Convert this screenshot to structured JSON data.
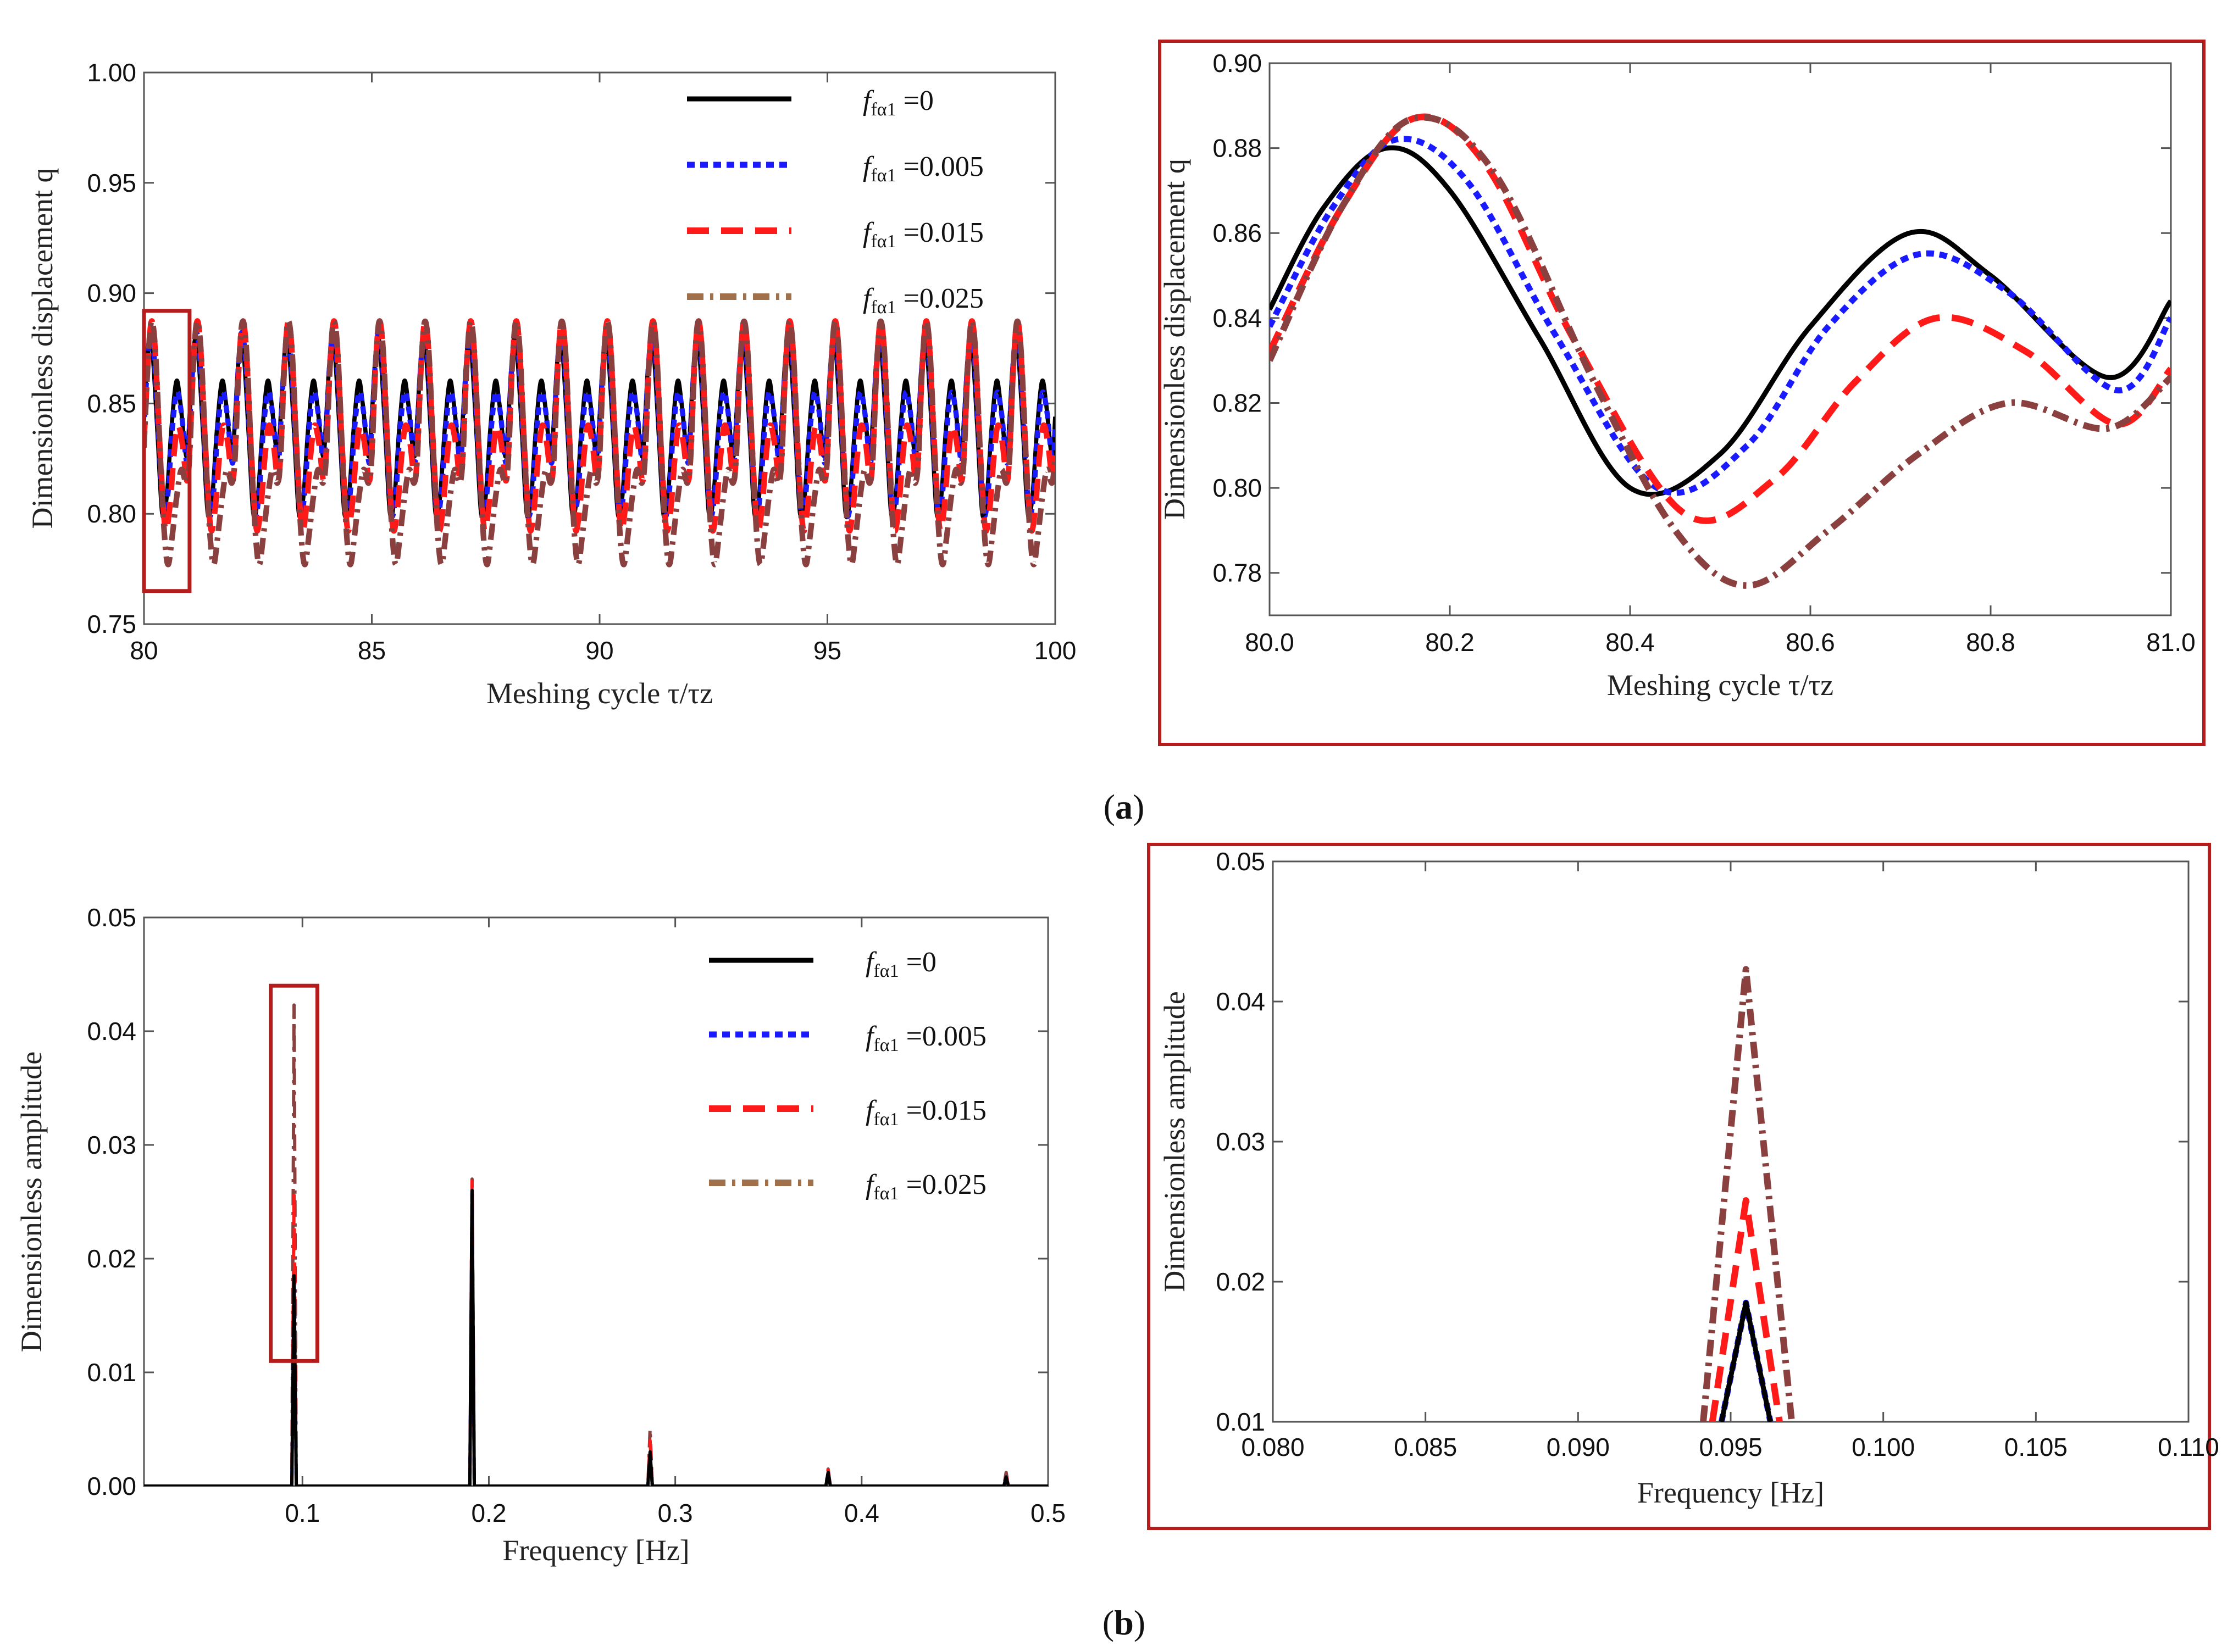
{
  "colors": {
    "series": [
      "#000000",
      "#1a1aff",
      "#ff1a1a",
      "#8b4040"
    ],
    "legend_swatch_025": "#a0704a",
    "highlight_box": "#b51c1c"
  },
  "panel_labels": {
    "a": {
      "open": "(",
      "letter": "a",
      "close": ")"
    },
    "b": {
      "open": "(",
      "letter": "b",
      "close": ")"
    }
  },
  "legend": {
    "items": [
      {
        "symbol": "f",
        "subscript": "fα1",
        "value": "=0"
      },
      {
        "symbol": "f",
        "subscript": "fα1",
        "value": "=0.005"
      },
      {
        "symbol": "f",
        "subscript": "fα1",
        "value": "=0.015"
      },
      {
        "symbol": "f",
        "subscript": "fα1",
        "value": "=0.025"
      }
    ]
  },
  "chart_data": [
    {
      "id": "a-main",
      "type": "line",
      "xlabel": "Meshing cycle τ/τz",
      "ylabel": "Dimensionless displacement q",
      "xlim": [
        80,
        100
      ],
      "ylim": [
        0.75,
        1.0
      ],
      "xticks": [
        "80",
        "85",
        "90",
        "95",
        "100"
      ],
      "yticks": [
        "0.75",
        "0.80",
        "0.85",
        "0.90",
        "0.95",
        "1.00"
      ],
      "legend_position": "top-right",
      "highlight_region": {
        "x": [
          80.0,
          81.0
        ],
        "y": [
          0.765,
          0.892
        ]
      },
      "series": [
        {
          "legend_index": 0,
          "dash": "solid",
          "period": 1.0,
          "y_min": 0.8,
          "y_max": 0.86,
          "y_peak2": 0.88
        },
        {
          "legend_index": 1,
          "dash": "dot",
          "period": 1.0,
          "y_min": 0.8,
          "y_max": 0.855,
          "y_peak2": 0.882
        },
        {
          "legend_index": 2,
          "dash": "dash",
          "period": 1.0,
          "y_min": 0.795,
          "y_max": 0.84,
          "y_peak2": 0.887
        },
        {
          "legend_index": 3,
          "dash": "dashdot",
          "period": 1.0,
          "y_min": 0.777,
          "y_max": 0.82,
          "y_peak2": 0.887
        }
      ]
    },
    {
      "id": "a-zoom",
      "type": "line",
      "xlabel": "Meshing cycle τ/τz",
      "ylabel": "Dimensionless displacement q",
      "xlim": [
        80.0,
        81.0
      ],
      "ylim": [
        0.77,
        0.9
      ],
      "xticks": [
        "80.0",
        "80.2",
        "80.4",
        "80.6",
        "80.8",
        "81.0"
      ],
      "yticks": [
        "0.78",
        "0.80",
        "0.82",
        "0.84",
        "0.86",
        "0.88",
        "0.90"
      ],
      "series": [
        {
          "legend_index": 0,
          "points": [
            [
              80.0,
              0.842
            ],
            [
              80.06,
              0.866
            ],
            [
              80.13,
              0.88
            ],
            [
              80.2,
              0.87
            ],
            [
              80.3,
              0.835
            ],
            [
              80.4,
              0.8
            ],
            [
              80.5,
              0.808
            ],
            [
              80.6,
              0.838
            ],
            [
              80.71,
              0.86
            ],
            [
              80.8,
              0.85
            ],
            [
              80.93,
              0.826
            ],
            [
              81.0,
              0.844
            ]
          ]
        },
        {
          "legend_index": 1,
          "points": [
            [
              80.0,
              0.838
            ],
            [
              80.07,
              0.866
            ],
            [
              80.14,
              0.882
            ],
            [
              80.22,
              0.872
            ],
            [
              80.32,
              0.835
            ],
            [
              80.43,
              0.8
            ],
            [
              80.53,
              0.81
            ],
            [
              80.62,
              0.838
            ],
            [
              80.72,
              0.855
            ],
            [
              80.82,
              0.846
            ],
            [
              80.94,
              0.823
            ],
            [
              81.0,
              0.84
            ]
          ]
        },
        {
          "legend_index": 2,
          "points": [
            [
              80.0,
              0.832
            ],
            [
              80.08,
              0.866
            ],
            [
              80.16,
              0.887
            ],
            [
              80.24,
              0.876
            ],
            [
              80.34,
              0.834
            ],
            [
              80.46,
              0.794
            ],
            [
              80.56,
              0.802
            ],
            [
              80.65,
              0.825
            ],
            [
              80.74,
              0.84
            ],
            [
              80.84,
              0.832
            ],
            [
              80.94,
              0.815
            ],
            [
              81.0,
              0.828
            ]
          ]
        },
        {
          "legend_index": 3,
          "points": [
            [
              80.0,
              0.83
            ],
            [
              80.08,
              0.866
            ],
            [
              80.16,
              0.887
            ],
            [
              80.25,
              0.874
            ],
            [
              80.36,
              0.825
            ],
            [
              80.45,
              0.79
            ],
            [
              80.53,
              0.777
            ],
            [
              80.62,
              0.79
            ],
            [
              80.72,
              0.808
            ],
            [
              80.82,
              0.82
            ],
            [
              80.93,
              0.814
            ],
            [
              81.0,
              0.826
            ]
          ]
        }
      ]
    },
    {
      "id": "b-main",
      "type": "line",
      "xlabel": "Frequency [Hz]",
      "ylabel": "Dimensionless amplitude",
      "xlim": [
        0.015,
        0.5
      ],
      "ylim": [
        0.0,
        0.05
      ],
      "xticks": [
        "0.1",
        "0.2",
        "0.3",
        "0.4",
        "0.5"
      ],
      "yticks": [
        "0.00",
        "0.01",
        "0.02",
        "0.03",
        "0.04",
        "0.05"
      ],
      "legend_position": "top-right",
      "highlight_region": {
        "x": [
          0.083,
          0.108
        ],
        "y": [
          0.011,
          0.044
        ]
      },
      "series": [
        {
          "legend_index": 0,
          "peaks": [
            [
              0.0955,
              0.0185
            ],
            [
              0.191,
              0.026
            ],
            [
              0.2865,
              0.003
            ],
            [
              0.382,
              0.0012
            ],
            [
              0.4775,
              0.0008
            ]
          ]
        },
        {
          "legend_index": 1,
          "peaks": [
            [
              0.0955,
              0.0185
            ],
            [
              0.191,
              0.026
            ],
            [
              0.2865,
              0.003
            ],
            [
              0.382,
              0.0012
            ],
            [
              0.4775,
              0.0008
            ]
          ]
        },
        {
          "legend_index": 2,
          "peaks": [
            [
              0.0955,
              0.0258
            ],
            [
              0.191,
              0.027
            ],
            [
              0.2865,
              0.004
            ],
            [
              0.382,
              0.0014
            ],
            [
              0.4775,
              0.001
            ]
          ]
        },
        {
          "legend_index": 3,
          "peaks": [
            [
              0.0955,
              0.0423
            ],
            [
              0.191,
              0.027
            ],
            [
              0.2865,
              0.005
            ],
            [
              0.382,
              0.0015
            ],
            [
              0.4775,
              0.0012
            ]
          ]
        }
      ]
    },
    {
      "id": "b-zoom",
      "type": "line",
      "xlabel": "Frequency [Hz]",
      "ylabel": "Dimensionless amplitude",
      "xlim": [
        0.08,
        0.11
      ],
      "ylim": [
        0.01,
        0.05
      ],
      "xticks": [
        "0.080",
        "0.085",
        "0.090",
        "0.095",
        "0.100",
        "0.105",
        "0.110"
      ],
      "yticks": [
        "0.01",
        "0.02",
        "0.03",
        "0.04",
        "0.05"
      ],
      "series": [
        {
          "legend_index": 0,
          "points": [
            [
              0.0947,
              0.01
            ],
            [
              0.0955,
              0.0185
            ],
            [
              0.0963,
              0.01
            ]
          ]
        },
        {
          "legend_index": 1,
          "points": [
            [
              0.0947,
              0.01
            ],
            [
              0.0955,
              0.0185
            ],
            [
              0.0963,
              0.01
            ]
          ]
        },
        {
          "legend_index": 2,
          "points": [
            [
              0.0944,
              0.01
            ],
            [
              0.0955,
              0.0258
            ],
            [
              0.0966,
              0.01
            ]
          ]
        },
        {
          "legend_index": 3,
          "points": [
            [
              0.0941,
              0.01
            ],
            [
              0.0955,
              0.0423
            ],
            [
              0.097,
              0.01
            ]
          ]
        }
      ]
    }
  ]
}
